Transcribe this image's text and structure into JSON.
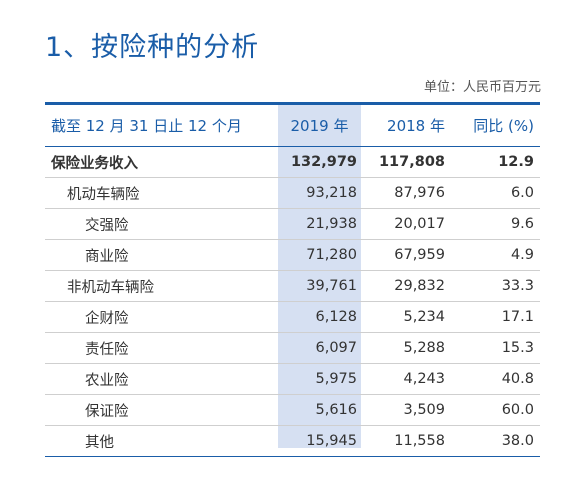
{
  "title": "1、按险种的分析",
  "unit": "单位：人民币百万元",
  "table": {
    "headers": {
      "label": "截至 12 月 31 日止 12 个月",
      "y2019": "2019 年",
      "y2018": "2018 年",
      "yoy": "同比 (%)"
    },
    "rows": [
      {
        "label": "保险业务收入",
        "level": 0,
        "y2019": "132,979",
        "y2018": "117,808",
        "yoy": "12.9"
      },
      {
        "label": "机动车辆险",
        "level": 1,
        "y2019": "93,218",
        "y2018": "87,976",
        "yoy": "6.0"
      },
      {
        "label": "交强险",
        "level": 2,
        "y2019": "21,938",
        "y2018": "20,017",
        "yoy": "9.6"
      },
      {
        "label": "商业险",
        "level": 2,
        "y2019": "71,280",
        "y2018": "67,959",
        "yoy": "4.9"
      },
      {
        "label": "非机动车辆险",
        "level": 1,
        "y2019": "39,761",
        "y2018": "29,832",
        "yoy": "33.3"
      },
      {
        "label": "企财险",
        "level": 2,
        "y2019": "6,128",
        "y2018": "5,234",
        "yoy": "17.1"
      },
      {
        "label": "责任险",
        "level": 2,
        "y2019": "6,097",
        "y2018": "5,288",
        "yoy": "15.3"
      },
      {
        "label": "农业险",
        "level": 2,
        "y2019": "5,975",
        "y2018": "4,243",
        "yoy": "40.8"
      },
      {
        "label": "保证险",
        "level": 2,
        "y2019": "5,616",
        "y2018": "3,509",
        "yoy": "60.0"
      },
      {
        "label": "其他",
        "level": 2,
        "y2019": "15,945",
        "y2018": "11,558",
        "yoy": "38.0"
      }
    ]
  },
  "colors": {
    "accent": "#1a5da8",
    "highlight_column": "#d6e0f2"
  }
}
